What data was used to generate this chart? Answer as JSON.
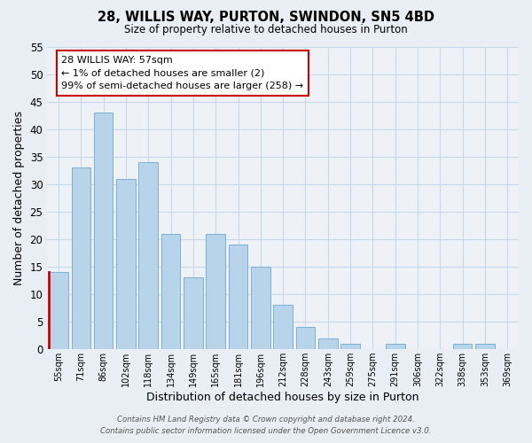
{
  "title": "28, WILLIS WAY, PURTON, SWINDON, SN5 4BD",
  "subtitle": "Size of property relative to detached houses in Purton",
  "xlabel": "Distribution of detached houses by size in Purton",
  "ylabel": "Number of detached properties",
  "bin_labels": [
    "55sqm",
    "71sqm",
    "86sqm",
    "102sqm",
    "118sqm",
    "134sqm",
    "149sqm",
    "165sqm",
    "181sqm",
    "196sqm",
    "212sqm",
    "228sqm",
    "243sqm",
    "259sqm",
    "275sqm",
    "291sqm",
    "306sqm",
    "322sqm",
    "338sqm",
    "353sqm",
    "369sqm"
  ],
  "bar_heights": [
    14,
    33,
    43,
    31,
    34,
    21,
    13,
    21,
    19,
    15,
    8,
    4,
    2,
    1,
    0,
    1,
    0,
    0,
    1,
    1,
    0
  ],
  "bar_color": "#b8d4ea",
  "bar_edge_color": "#7aafd4",
  "highlight_bar_index": 0,
  "highlight_bar_color": "#b8d4ea",
  "highlight_left_edge_color": "#cc0000",
  "annotation_box_edge_color": "#cc0000",
  "annotation_lines": [
    "28 WILLIS WAY: 57sqm",
    "← 1% of detached houses are smaller (2)",
    "99% of semi-detached houses are larger (258) →"
  ],
  "ylim": [
    0,
    55
  ],
  "yticks": [
    0,
    5,
    10,
    15,
    20,
    25,
    30,
    35,
    40,
    45,
    50,
    55
  ],
  "footer_line1": "Contains HM Land Registry data © Crown copyright and database right 2024.",
  "footer_line2": "Contains public sector information licensed under the Open Government Licence v3.0.",
  "bg_color": "#e8eef4",
  "plot_bg_color": "#eef2f7",
  "grid_color": "#c8d8e8"
}
